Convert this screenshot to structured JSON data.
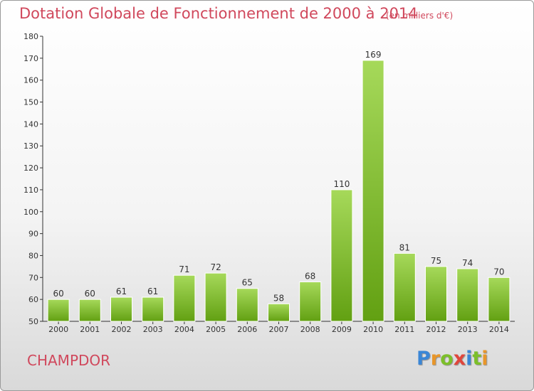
{
  "header": {
    "title": "Dotation Globale de Fonctionnement de 2000 à 2014",
    "unit_note": "(en milliers d'€)"
  },
  "footer": {
    "commune": "CHAMPDOR",
    "logo_letters": [
      {
        "ch": "P",
        "color": "#3a86d6"
      },
      {
        "ch": "r",
        "color": "#e8962a"
      },
      {
        "ch": "o",
        "color": "#7cbf2a"
      },
      {
        "ch": "x",
        "color": "#e0463c"
      },
      {
        "ch": "i",
        "color": "#3a86d6"
      },
      {
        "ch": "t",
        "color": "#7cbf2a"
      },
      {
        "ch": "i",
        "color": "#e8962a"
      }
    ]
  },
  "colors": {
    "accent": "#d0485c",
    "bar_light": "#a6d95a",
    "bar_dark": "#62a012"
  },
  "chart_data": {
    "type": "bar",
    "categories": [
      "2000",
      "2001",
      "2002",
      "2003",
      "2004",
      "2005",
      "2006",
      "2007",
      "2008",
      "2009",
      "2010",
      "2011",
      "2012",
      "2013",
      "2014"
    ],
    "values": [
      60,
      60,
      61,
      61,
      71,
      72,
      65,
      58,
      68,
      110,
      169,
      81,
      75,
      74,
      70
    ],
    "ylim": [
      50,
      180
    ],
    "yticks": [
      50,
      60,
      70,
      80,
      90,
      100,
      110,
      120,
      130,
      140,
      150,
      160,
      170,
      180
    ],
    "grid": false,
    "data_labels": true
  }
}
